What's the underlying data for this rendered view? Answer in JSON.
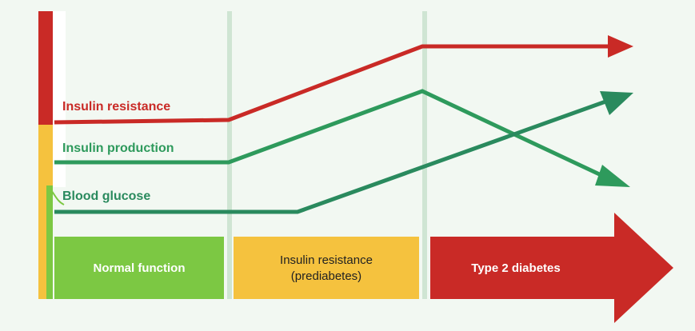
{
  "labels": {
    "insulin_resistance": "Insulin resistance",
    "insulin_production": "Insulin production",
    "blood_glucose": "Blood glucose"
  },
  "stages": {
    "normal": "Normal function",
    "prediabetes_line1": "Insulin resistance",
    "prediabetes_line2": "(prediabetes)",
    "diabetes": "Type 2 diabetes"
  },
  "colors": {
    "red": "#c92a26",
    "green": "#2e9a5c",
    "dark_green": "#2a8a5e",
    "lime": "#7cc843",
    "yellow": "#f5c23e",
    "divider": "#cfe5d3"
  }
}
